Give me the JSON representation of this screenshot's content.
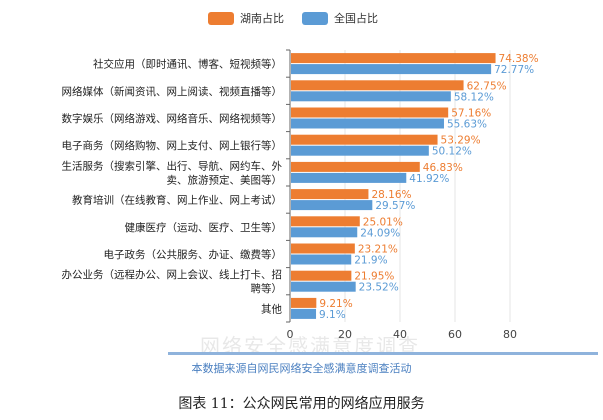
{
  "legend": {
    "hunan_label": "湖南占比",
    "national_label": "全国占比"
  },
  "colors": {
    "hunan": "#ed7d31",
    "national": "#5b9bd5",
    "axis": "#666666",
    "grid": "#e6e6e6"
  },
  "chart_data": {
    "type": "bar",
    "orientation": "horizontal",
    "categories": [
      [
        "社交应用（即时通讯、博客、短视频等）"
      ],
      [
        "网络媒体（新闻资讯、网上阅读、视频直播等）"
      ],
      [
        "数字娱乐（网络游戏、网络音乐、网络视频等）"
      ],
      [
        "电子商务（网络购物、网上支付、网上银行等）"
      ],
      [
        "生活服务（搜索引擎、出行、导航、网约车、外",
        "卖、旅游预定、美图等）"
      ],
      [
        "教育培训（在线教育、网上作业、网上考试）"
      ],
      [
        "健康医疗（运动、医疗、卫生等）"
      ],
      [
        "电子政务（公共服务、办证、缴费等）"
      ],
      [
        "办公业务（远程办公、网上会议、线上打卡、招",
        "聘等）"
      ],
      [
        "其他"
      ]
    ],
    "series": [
      {
        "name": "湖南占比",
        "values": [
          74.38,
          62.75,
          57.16,
          53.29,
          46.83,
          28.16,
          25.01,
          23.21,
          21.95,
          9.21
        ],
        "labels": [
          "74.38%",
          "62.75%",
          "57.16%",
          "53.29%",
          "46.83%",
          "28.16%",
          "25.01%",
          "23.21%",
          "21.95%",
          "9.21%"
        ]
      },
      {
        "name": "全国占比",
        "values": [
          72.77,
          58.12,
          55.63,
          50.12,
          41.92,
          29.57,
          24.09,
          21.9,
          23.52,
          9.1
        ],
        "labels": [
          "72.77%",
          "58.12%",
          "55.63%",
          "50.12%",
          "41.92%",
          "29.57%",
          "24.09%",
          "21.9%",
          "23.52%",
          "9.1%"
        ]
      }
    ],
    "xlim": [
      0,
      80
    ],
    "xticks": [
      "0",
      "20",
      "40",
      "60",
      "80"
    ],
    "grid": true,
    "legend_position": "top"
  },
  "watermark_text": "网络安全感满意度调查",
  "source_note": "本数据来源自网民网络安全感满意度调查活动",
  "caption": "图表 11：公众网民常用的网络应用服务"
}
